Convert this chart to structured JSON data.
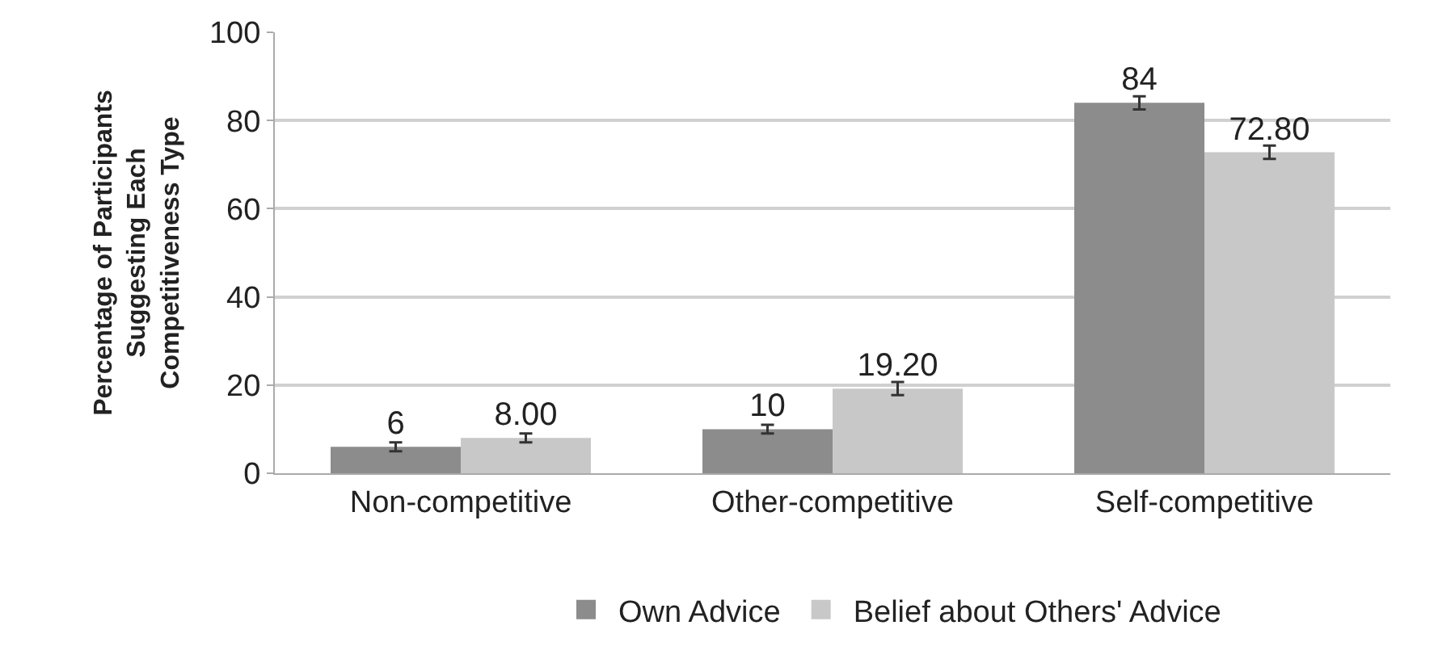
{
  "chart_data": {
    "type": "bar",
    "ylabel": "Percentage of Participants Suggesting Each Competitiveness Type",
    "categories": [
      "Non-competitive",
      "Other-competitive",
      "Self-competitive"
    ],
    "series": [
      {
        "name": "Own Advice",
        "color": "#8c8c8c",
        "values": [
          6,
          10,
          84
        ],
        "errors": [
          1,
          1,
          1.5
        ],
        "value_labels": [
          "6",
          "10",
          "84"
        ]
      },
      {
        "name": "Belief about Others' Advice",
        "color": "#c8c8c8",
        "values": [
          8,
          19.2,
          72.8
        ],
        "errors": [
          1,
          1.5,
          1.5
        ],
        "value_labels": [
          "8.00",
          "19.20",
          "72.80"
        ]
      }
    ],
    "ylim": [
      0,
      100
    ],
    "yticks": [
      0,
      20,
      40,
      60,
      80,
      100
    ],
    "grid": "y",
    "legend": "bottom"
  }
}
